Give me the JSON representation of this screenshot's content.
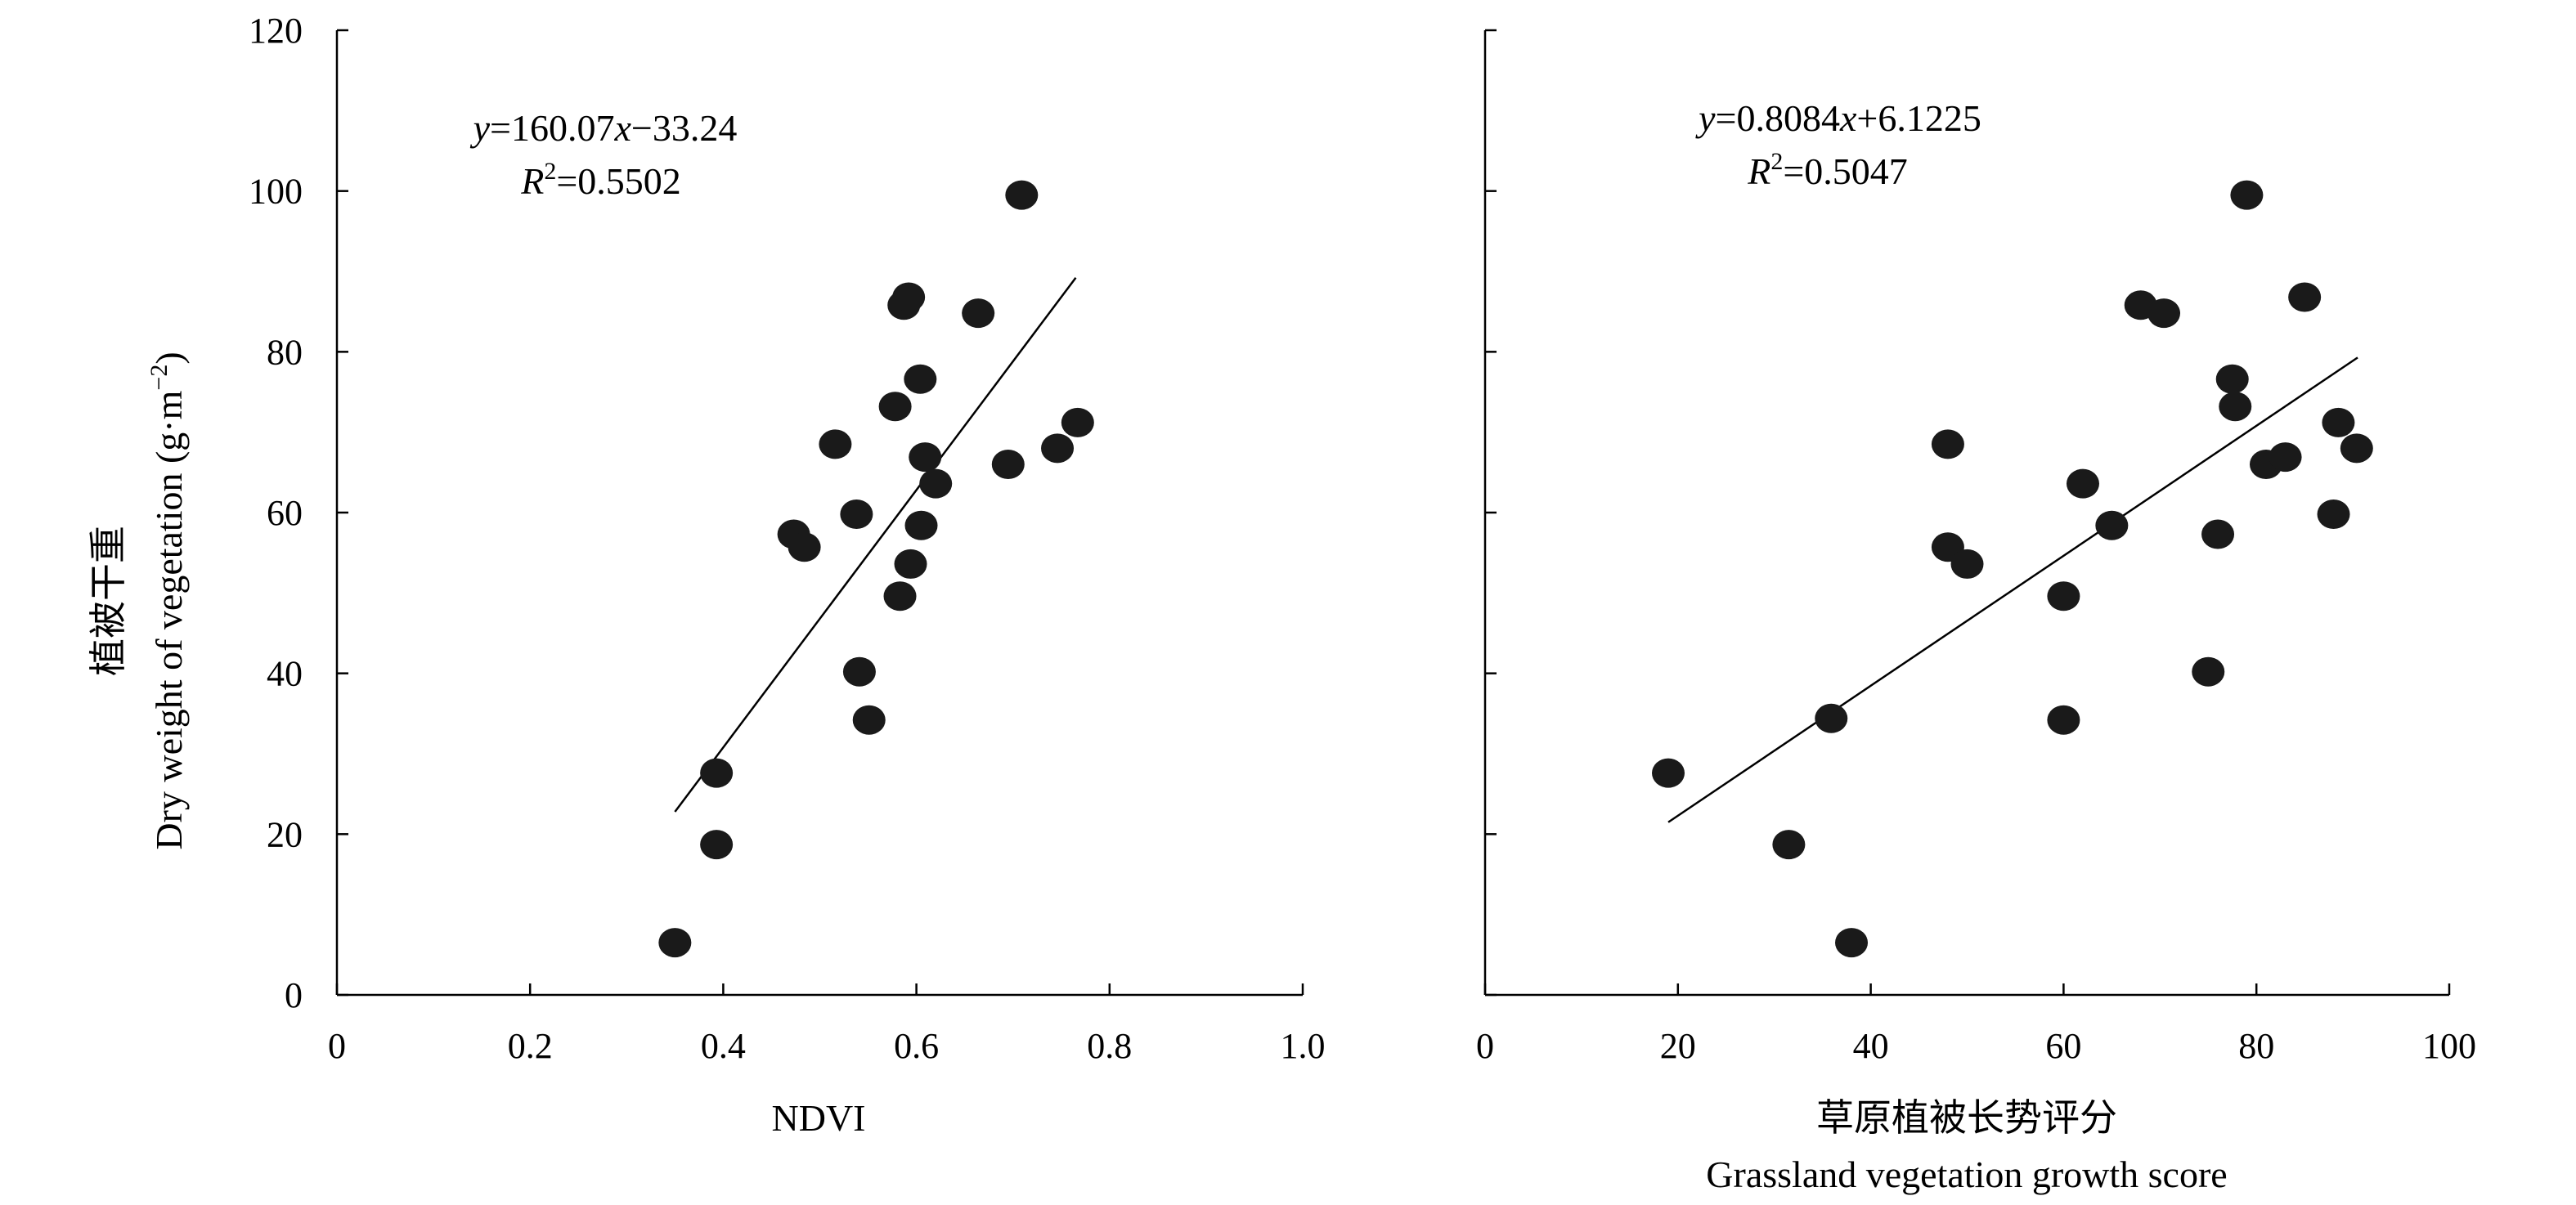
{
  "y_axis_title": {
    "line1": "植被干重",
    "line2_main": "Dry weight of vegetation (g·m",
    "line2_sup": "−2",
    "line2_end": ")"
  },
  "chart_data": [
    {
      "type": "scatter",
      "xlabel": "NDVI",
      "ylabel": "植被干重 Dry weight of vegetation (g·m−2)",
      "xlim": [
        0,
        1.0
      ],
      "ylim": [
        0,
        120
      ],
      "x_ticks": [
        0,
        0.2,
        0.4,
        0.6,
        0.8,
        1.0
      ],
      "x_tick_labels": [
        "0",
        "0.2",
        "0.4",
        "0.6",
        "0.8",
        "1.0"
      ],
      "y_ticks": [
        0,
        20,
        40,
        60,
        80,
        100,
        120
      ],
      "y_tick_labels": [
        "0",
        "20",
        "40",
        "60",
        "80",
        "100",
        "120"
      ],
      "equation": {
        "y": "y",
        "eq": "=160.07",
        "x": "x",
        "rest": "−33.24"
      },
      "r2": {
        "r": "R",
        "sup": "2",
        "rest": "=0.5502"
      },
      "fit": {
        "slope": 160.07,
        "intercept": -33.24,
        "x_range": [
          0.35,
          0.765
        ]
      },
      "points": [
        {
          "x": 0.35,
          "y": 6.5
        },
        {
          "x": 0.393,
          "y": 18.7
        },
        {
          "x": 0.393,
          "y": 27.6
        },
        {
          "x": 0.473,
          "y": 57.3
        },
        {
          "x": 0.484,
          "y": 55.7
        },
        {
          "x": 0.516,
          "y": 68.5
        },
        {
          "x": 0.538,
          "y": 59.8
        },
        {
          "x": 0.541,
          "y": 40.2
        },
        {
          "x": 0.551,
          "y": 34.2
        },
        {
          "x": 0.578,
          "y": 73.2
        },
        {
          "x": 0.583,
          "y": 49.6
        },
        {
          "x": 0.587,
          "y": 85.8
        },
        {
          "x": 0.592,
          "y": 86.8
        },
        {
          "x": 0.594,
          "y": 53.6
        },
        {
          "x": 0.604,
          "y": 76.6
        },
        {
          "x": 0.605,
          "y": 58.4
        },
        {
          "x": 0.609,
          "y": 66.9
        },
        {
          "x": 0.62,
          "y": 63.6
        },
        {
          "x": 0.664,
          "y": 84.8
        },
        {
          "x": 0.695,
          "y": 66.0
        },
        {
          "x": 0.709,
          "y": 99.5
        },
        {
          "x": 0.746,
          "y": 68.0
        },
        {
          "x": 0.767,
          "y": 71.2
        }
      ]
    },
    {
      "type": "scatter",
      "xlabel": "草原植被长势评分",
      "xlabel2": "Grassland vegetation growth score",
      "xlim": [
        0,
        100
      ],
      "ylim": [
        0,
        120
      ],
      "x_ticks": [
        0,
        20,
        40,
        60,
        80,
        100
      ],
      "x_tick_labels": [
        "0",
        "20",
        "40",
        "60",
        "80",
        "100"
      ],
      "y_ticks": [
        0,
        20,
        40,
        60,
        80,
        100,
        120
      ],
      "equation": {
        "y": "y",
        "eq": "=0.8084",
        "x": "x",
        "rest": "+6.1225"
      },
      "r2": {
        "r": "R",
        "sup": "2",
        "rest": "=0.5047"
      },
      "fit": {
        "slope": 0.8084,
        "intercept": 6.1225,
        "x_range": [
          19,
          90.5
        ]
      },
      "points": [
        {
          "x": 19.0,
          "y": 27.6
        },
        {
          "x": 31.5,
          "y": 18.7
        },
        {
          "x": 35.9,
          "y": 34.4
        },
        {
          "x": 38.0,
          "y": 6.5
        },
        {
          "x": 48.0,
          "y": 68.5
        },
        {
          "x": 48.0,
          "y": 55.7
        },
        {
          "x": 50.0,
          "y": 53.6
        },
        {
          "x": 60.0,
          "y": 49.6
        },
        {
          "x": 60.0,
          "y": 34.2
        },
        {
          "x": 62.0,
          "y": 63.6
        },
        {
          "x": 65.0,
          "y": 58.4
        },
        {
          "x": 68.0,
          "y": 85.8
        },
        {
          "x": 70.4,
          "y": 84.8
        },
        {
          "x": 75.0,
          "y": 40.2
        },
        {
          "x": 76.0,
          "y": 57.3
        },
        {
          "x": 77.5,
          "y": 76.6
        },
        {
          "x": 77.8,
          "y": 73.2
        },
        {
          "x": 79.0,
          "y": 99.5
        },
        {
          "x": 81.0,
          "y": 66.0
        },
        {
          "x": 83.0,
          "y": 66.9
        },
        {
          "x": 85.0,
          "y": 86.8
        },
        {
          "x": 88.0,
          "y": 59.8
        },
        {
          "x": 88.5,
          "y": 71.2
        },
        {
          "x": 90.4,
          "y": 68.0
        }
      ]
    }
  ]
}
